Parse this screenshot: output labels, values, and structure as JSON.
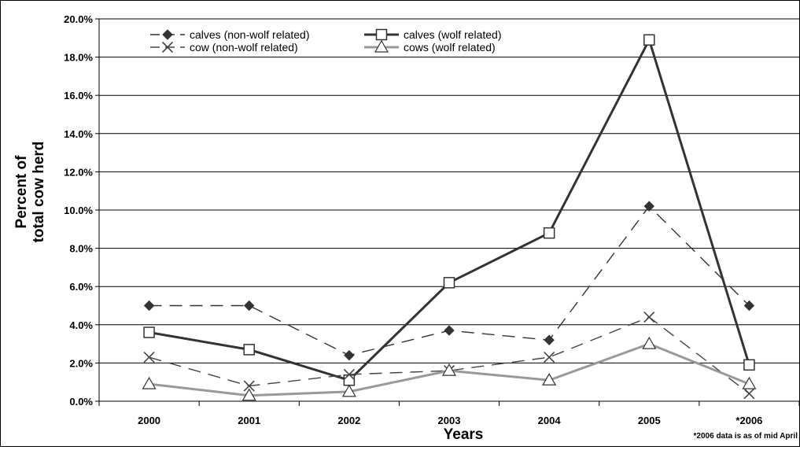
{
  "chart_data": {
    "type": "line",
    "title": "",
    "xlabel": "Years",
    "ylabel": [
      "Percent of",
      "total cow herd"
    ],
    "categories": [
      "2000",
      "2001",
      "2002",
      "2003",
      "2004",
      "2005",
      "*2006"
    ],
    "ylim": [
      0,
      20
    ],
    "yticks": [
      "0.0%",
      "2.0%",
      "4.0%",
      "6.0%",
      "8.0%",
      "10.0%",
      "12.0%",
      "14.0%",
      "16.0%",
      "18.0%",
      "20.0%"
    ],
    "grid": true,
    "legend_position": "top-left",
    "footnote": "*2006 data is as of mid April",
    "series": [
      {
        "name": "calves (non-wolf related)",
        "values": [
          5.0,
          5.0,
          2.4,
          3.7,
          3.2,
          10.2,
          5.0
        ],
        "color": "#333333",
        "dash": "long-dash",
        "marker": "diamond"
      },
      {
        "name": "calves (wolf related)",
        "values": [
          3.6,
          2.7,
          1.1,
          6.2,
          8.8,
          18.9,
          1.9
        ],
        "color": "#333333",
        "dash": "solid",
        "marker": "square"
      },
      {
        "name": "cow (non-wolf related)",
        "values": [
          2.3,
          0.8,
          1.4,
          1.6,
          2.3,
          4.4,
          0.4
        ],
        "color": "#444444",
        "dash": "long-dash",
        "marker": "x"
      },
      {
        "name": "cows (wolf related)",
        "values": [
          0.9,
          0.3,
          0.5,
          1.6,
          1.1,
          3.0,
          0.9
        ],
        "color": "#999999",
        "dash": "solid",
        "marker": "triangle"
      }
    ]
  }
}
